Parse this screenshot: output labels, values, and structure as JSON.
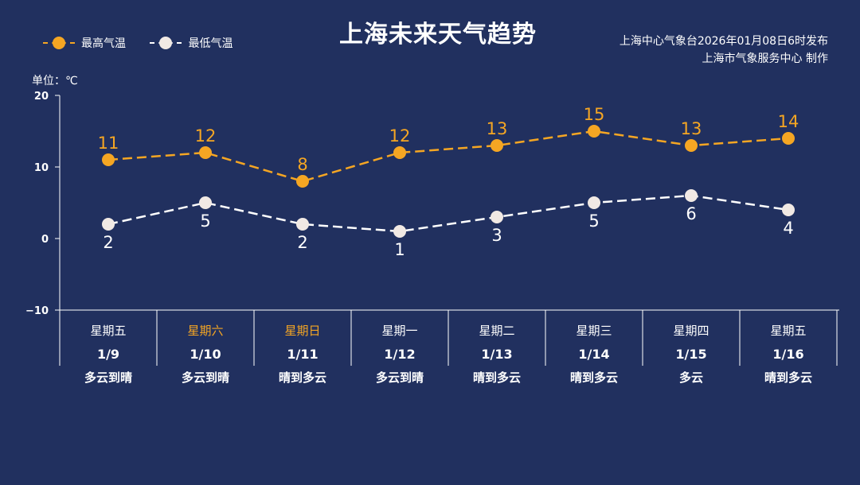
{
  "title": "上海未来天气趋势",
  "source_lines": [
    "上海中心气象台2026年01月08日6时发布",
    "上海市气象服务中心  制作"
  ],
  "legend": {
    "high_label": "最高气温",
    "low_label": "最低气温"
  },
  "unit_label": "单位：℃",
  "colors": {
    "background": "#21305f",
    "high": "#f5a623",
    "low": "#ffffff",
    "weekend_text": "#f5a623"
  },
  "chart_data": {
    "type": "line",
    "y_ticks": [
      "20",
      "10",
      "0",
      "−10"
    ],
    "ylim": [
      -10,
      20
    ],
    "grid": false,
    "legend_position": "top-left",
    "days": [
      {
        "weekday": "星期五",
        "date": "1/9",
        "weather": "多云到晴",
        "weekend": false
      },
      {
        "weekday": "星期六",
        "date": "1/10",
        "weather": "多云到晴",
        "weekend": true
      },
      {
        "weekday": "星期日",
        "date": "1/11",
        "weather": "晴到多云",
        "weekend": true
      },
      {
        "weekday": "星期一",
        "date": "1/12",
        "weather": "多云到晴",
        "weekend": false
      },
      {
        "weekday": "星期二",
        "date": "1/13",
        "weather": "晴到多云",
        "weekend": false
      },
      {
        "weekday": "星期三",
        "date": "1/14",
        "weather": "晴到多云",
        "weekend": false
      },
      {
        "weekday": "星期四",
        "date": "1/15",
        "weather": "多云",
        "weekend": false
      },
      {
        "weekday": "星期五",
        "date": "1/16",
        "weather": "晴到多云",
        "weekend": false
      }
    ],
    "series": [
      {
        "name": "最高气温",
        "key": "high",
        "values": [
          11,
          12,
          8,
          12,
          13,
          15,
          13,
          14
        ]
      },
      {
        "name": "最低气温",
        "key": "low",
        "values": [
          2,
          5,
          2,
          1,
          3,
          5,
          6,
          4
        ]
      }
    ]
  }
}
